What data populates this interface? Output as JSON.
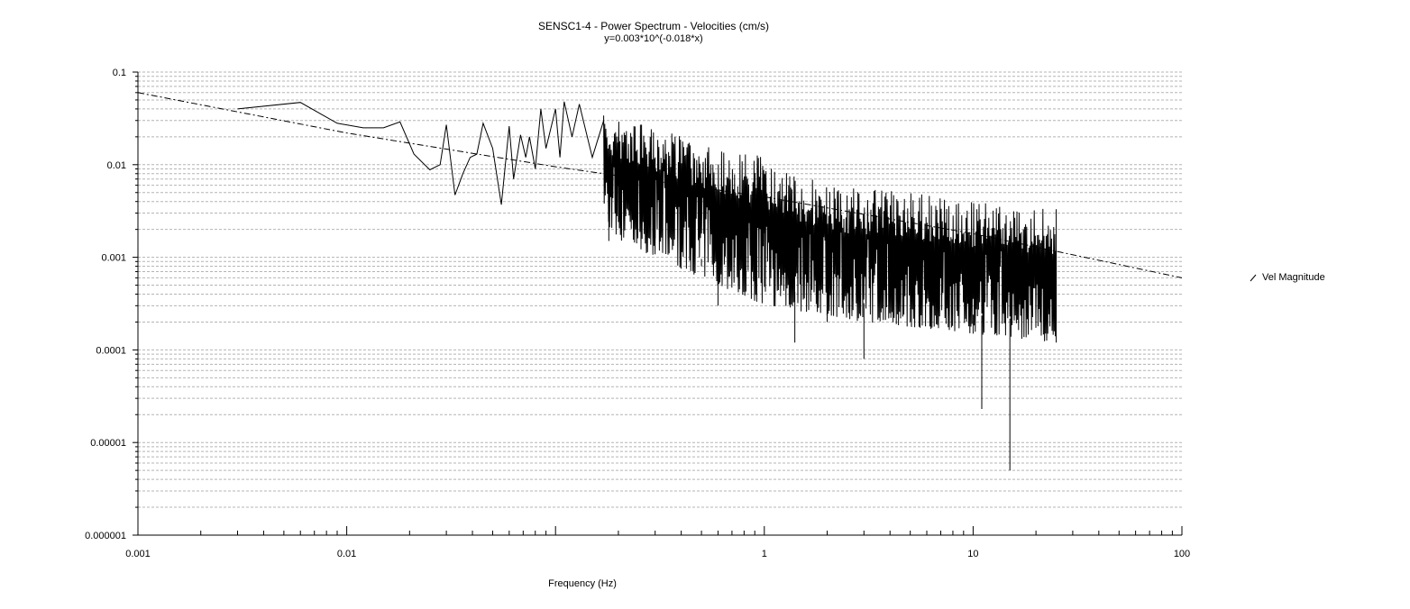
{
  "window": {
    "title": "SENSC1-4 - Power Spectrum - Velocities (cm/s)",
    "subtitle": "y=0.003*10^(-0.018*x)"
  },
  "legend": {
    "items": [
      {
        "label": "Vel Magnitude",
        "color": "#000000"
      }
    ]
  },
  "chart_data": {
    "type": "line",
    "title": "SENSC1-4 - Power Spectrum - Velocities (cm/s)",
    "subtitle": "y=0.003*10^(-0.018*x)",
    "xlabel": "Frequency (Hz)",
    "ylabel": "",
    "xscale": "log",
    "yscale": "log",
    "xlim": [
      0.001,
      100
    ],
    "ylim": [
      1e-06,
      0.1
    ],
    "xticks": [
      "0.001",
      "0.01",
      "1",
      "10",
      "100"
    ],
    "yticks": [
      "0.1",
      "0.01",
      "0.001",
      "0.0001",
      "0.00001",
      "0.000001"
    ],
    "grid": {
      "horizontal_minor": true,
      "style": "dashed"
    },
    "legend_position": "right",
    "series": [
      {
        "name": "Vel Magnitude",
        "style": "solid",
        "color": "#000000",
        "x_range": [
          0.003,
          25
        ],
        "upper_envelope": [
          [
            0.003,
            0.04
          ],
          [
            0.006,
            0.047
          ],
          [
            0.012,
            0.025
          ],
          [
            0.05,
            0.03
          ],
          [
            0.1,
            0.045
          ],
          [
            0.3,
            0.025
          ],
          [
            1,
            0.012
          ],
          [
            2,
            0.006
          ],
          [
            5,
            0.005
          ],
          [
            10,
            0.004
          ],
          [
            25,
            0.0033
          ]
        ],
        "lower_envelope": [
          [
            0.003,
            0.04
          ],
          [
            0.006,
            0.047
          ],
          [
            0.012,
            0.025
          ],
          [
            0.03,
            0.005
          ],
          [
            0.1,
            0.01
          ],
          [
            0.2,
            0.0015
          ],
          [
            0.5,
            0.0006
          ],
          [
            1,
            0.0003
          ],
          [
            3,
            0.0002
          ],
          [
            10,
            0.00015
          ],
          [
            25,
            0.00012
          ]
        ],
        "points": [
          [
            0.003,
            0.04
          ],
          [
            0.006,
            0.047
          ],
          [
            0.009,
            0.028
          ],
          [
            0.012,
            0.025
          ],
          [
            0.015,
            0.025
          ],
          [
            0.018,
            0.029
          ],
          [
            0.021,
            0.013
          ],
          [
            0.025,
            0.0088
          ],
          [
            0.028,
            0.01
          ],
          [
            0.03,
            0.027
          ],
          [
            0.033,
            0.0047
          ],
          [
            0.036,
            0.008
          ],
          [
            0.039,
            0.012
          ],
          [
            0.042,
            0.013
          ],
          [
            0.045,
            0.028
          ],
          [
            0.05,
            0.015
          ],
          [
            0.055,
            0.0037
          ],
          [
            0.06,
            0.026
          ],
          [
            0.063,
            0.007
          ],
          [
            0.068,
            0.021
          ],
          [
            0.072,
            0.012
          ],
          [
            0.075,
            0.02
          ],
          [
            0.08,
            0.009
          ],
          [
            0.085,
            0.04
          ],
          [
            0.09,
            0.015
          ],
          [
            0.1,
            0.04
          ],
          [
            0.105,
            0.012
          ],
          [
            0.11,
            0.048
          ],
          [
            0.12,
            0.02
          ],
          [
            0.13,
            0.045
          ],
          [
            0.15,
            0.012
          ],
          [
            0.17,
            0.03
          ],
          [
            0.18,
            0.0015
          ],
          [
            0.2,
            0.02
          ],
          [
            0.3,
            0.012
          ],
          [
            0.5,
            0.0008
          ],
          [
            0.6,
            0.0003
          ],
          [
            1,
            0.008
          ],
          [
            1.4,
            0.00012
          ],
          [
            2,
            0.0002
          ],
          [
            3,
            8e-05
          ],
          [
            5,
            0.0002
          ],
          [
            10,
            0.00015
          ],
          [
            11,
            2.3e-05
          ],
          [
            15,
            5e-06
          ],
          [
            20,
            0.0002
          ],
          [
            25,
            0.0012
          ]
        ]
      },
      {
        "name": "",
        "style": "dash-dot",
        "color": "#000000",
        "points": [
          [
            0.001,
            0.06
          ],
          [
            0.01,
            0.022
          ],
          [
            0.1,
            0.0095
          ],
          [
            1,
            0.0045
          ],
          [
            10,
            0.0018
          ],
          [
            100,
            0.0006
          ]
        ]
      }
    ]
  }
}
